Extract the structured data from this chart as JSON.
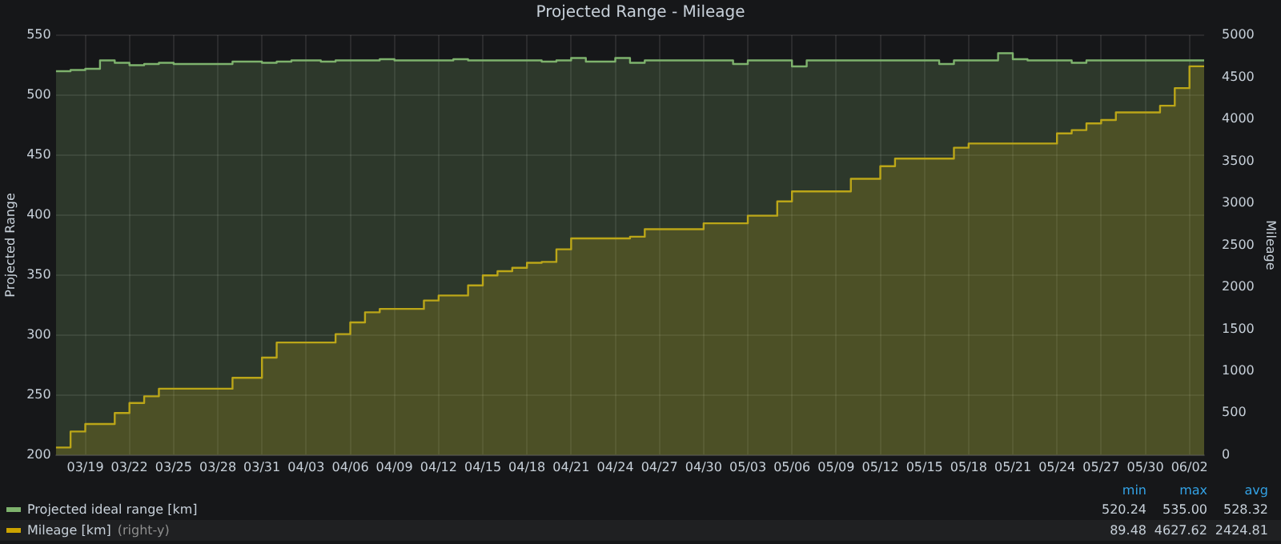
{
  "chart_data": {
    "type": "area",
    "title": "Projected Range - Mileage",
    "ylabel": "Projected Range",
    "y2label": "Mileage",
    "xlim": [
      "--03-17",
      "--06-03"
    ],
    "xticks": [
      {
        "value": "--03-19",
        "label": "03/19"
      },
      {
        "value": "--03-22",
        "label": "03/22"
      },
      {
        "value": "--03-25",
        "label": "03/25"
      },
      {
        "value": "--03-28",
        "label": "03/28"
      },
      {
        "value": "--03-31",
        "label": "03/31"
      },
      {
        "value": "--04-03",
        "label": "04/03"
      },
      {
        "value": "--04-06",
        "label": "04/06"
      },
      {
        "value": "--04-09",
        "label": "04/09"
      },
      {
        "value": "--04-12",
        "label": "04/12"
      },
      {
        "value": "--04-15",
        "label": "04/15"
      },
      {
        "value": "--04-18",
        "label": "04/18"
      },
      {
        "value": "--04-21",
        "label": "04/21"
      },
      {
        "value": "--04-24",
        "label": "04/24"
      },
      {
        "value": "--04-27",
        "label": "04/27"
      },
      {
        "value": "--04-30",
        "label": "04/30"
      },
      {
        "value": "--05-03",
        "label": "05/03"
      },
      {
        "value": "--05-06",
        "label": "05/06"
      },
      {
        "value": "--05-09",
        "label": "05/09"
      },
      {
        "value": "--05-12",
        "label": "05/12"
      },
      {
        "value": "--05-15",
        "label": "05/15"
      },
      {
        "value": "--05-18",
        "label": "05/18"
      },
      {
        "value": "--05-21",
        "label": "05/21"
      },
      {
        "value": "--05-24",
        "label": "05/24"
      },
      {
        "value": "--05-27",
        "label": "05/27"
      },
      {
        "value": "--05-30",
        "label": "05/30"
      },
      {
        "value": "--06-02",
        "label": "06/02"
      }
    ],
    "series": [
      {
        "name": "Projected ideal range [km]",
        "color": "#7eb26d",
        "x": [
          "--03-17",
          "--03-18",
          "--03-18",
          "--03-19",
          "--03-19",
          "--03-20",
          "--03-20",
          "--03-21",
          "--03-21",
          "--03-22",
          "--03-22",
          "--03-23",
          "--03-23",
          "--03-24",
          "--03-24",
          "--03-25",
          "--03-25",
          "--03-29",
          "--03-29",
          "--03-31",
          "--03-31",
          "--04-01",
          "--04-01",
          "--04-02",
          "--04-02",
          "--04-04",
          "--04-04",
          "--04-05",
          "--04-05",
          "--04-08",
          "--04-08",
          "--04-09",
          "--04-09",
          "--04-13",
          "--04-13",
          "--04-14",
          "--04-14",
          "--04-19",
          "--04-19",
          "--04-20",
          "--04-20",
          "--04-21",
          "--04-21",
          "--04-22",
          "--04-22",
          "--04-24",
          "--04-24",
          "--04-25",
          "--04-25",
          "--04-26",
          "--04-26",
          "--05-02",
          "--05-02",
          "--05-03",
          "--05-03",
          "--05-06",
          "--05-06",
          "--05-07",
          "--05-07",
          "--05-16",
          "--05-16",
          "--05-17",
          "--05-17",
          "--05-20",
          "--05-20",
          "--05-21",
          "--05-21",
          "--05-22",
          "--05-22",
          "--05-25",
          "--05-25",
          "--05-26",
          "--05-26",
          "--06-03"
        ],
        "values": [
          520,
          520,
          521,
          521,
          522,
          522,
          529,
          529,
          527,
          527,
          525,
          525,
          526,
          526,
          527,
          527,
          526,
          526,
          528,
          528,
          527,
          527,
          528,
          528,
          529,
          529,
          528,
          528,
          529,
          529,
          530,
          530,
          529,
          529,
          530,
          530,
          529,
          529,
          528,
          528,
          529,
          529,
          531,
          531,
          528,
          528,
          531,
          531,
          527,
          527,
          529,
          529,
          526,
          526,
          529,
          529,
          524,
          524,
          529,
          529,
          526,
          526,
          529,
          529,
          535,
          535,
          530,
          530,
          529,
          529,
          527,
          527,
          529,
          529
        ]
      },
      {
        "name": "Mileage [km]",
        "color": "#cca300",
        "axis": "y2",
        "x": [
          "--03-17",
          "--03-18",
          "--03-18",
          "--03-19",
          "--03-19",
          "--03-21",
          "--03-21",
          "--03-22",
          "--03-22",
          "--03-23",
          "--03-23",
          "--03-24",
          "--03-24",
          "--03-29",
          "--03-29",
          "--03-31",
          "--03-31",
          "--04-01",
          "--04-01",
          "--04-05",
          "--04-05",
          "--04-06",
          "--04-06",
          "--04-07",
          "--04-07",
          "--04-08",
          "--04-08",
          "--04-11",
          "--04-11",
          "--04-12",
          "--04-12",
          "--04-14",
          "--04-14",
          "--04-15",
          "--04-15",
          "--04-16",
          "--04-16",
          "--04-17",
          "--04-17",
          "--04-18",
          "--04-18",
          "--04-19",
          "--04-19",
          "--04-20",
          "--04-20",
          "--04-21",
          "--04-21",
          "--04-25",
          "--04-25",
          "--04-26",
          "--04-26",
          "--04-30",
          "--04-30",
          "--05-03",
          "--05-03",
          "--05-05",
          "--05-05",
          "--05-06",
          "--05-06",
          "--05-10",
          "--05-10",
          "--05-12",
          "--05-12",
          "--05-13",
          "--05-13",
          "--05-17",
          "--05-17",
          "--05-18",
          "--05-18",
          "--05-24",
          "--05-24",
          "--05-25",
          "--05-25",
          "--05-26",
          "--05-26",
          "--05-27",
          "--05-27",
          "--05-28",
          "--05-28",
          "--05-31",
          "--05-31",
          "--06-01",
          "--06-01",
          "--06-02",
          "--06-02",
          "--06-03"
        ],
        "values": [
          90,
          90,
          280,
          280,
          370,
          370,
          500,
          500,
          620,
          620,
          700,
          700,
          790,
          790,
          920,
          920,
          1160,
          1160,
          1340,
          1340,
          1440,
          1440,
          1580,
          1580,
          1700,
          1700,
          1740,
          1740,
          1840,
          1840,
          1900,
          1900,
          2020,
          2020,
          2140,
          2140,
          2190,
          2190,
          2230,
          2230,
          2290,
          2290,
          2300,
          2300,
          2450,
          2450,
          2580,
          2580,
          2600,
          2600,
          2690,
          2690,
          2760,
          2760,
          2850,
          2850,
          3020,
          3020,
          3140,
          3140,
          3290,
          3290,
          3440,
          3440,
          3530,
          3530,
          3660,
          3660,
          3710,
          3710,
          3830,
          3830,
          3870,
          3870,
          3950,
          3950,
          3990,
          3990,
          4080,
          4080,
          4160,
          4160,
          4370,
          4370,
          4630,
          4630
        ]
      }
    ],
    "ylim": [
      200,
      550
    ],
    "yticks": [
      200,
      250,
      300,
      350,
      400,
      450,
      500,
      550
    ],
    "y2lim": [
      0,
      5000
    ],
    "y2ticks": [
      0,
      500,
      1000,
      1500,
      2000,
      2500,
      3000,
      3500,
      4000,
      4500,
      5000
    ],
    "grid": true,
    "legend": "bottom",
    "marker": "none",
    "line_style": "solid",
    "annotations": [
      "min",
      "max",
      "avg",
      "520.24",
      "535.00",
      "528.32",
      "89.48",
      "4627.62",
      "2424.81",
      "(right-y)"
    ]
  }
}
